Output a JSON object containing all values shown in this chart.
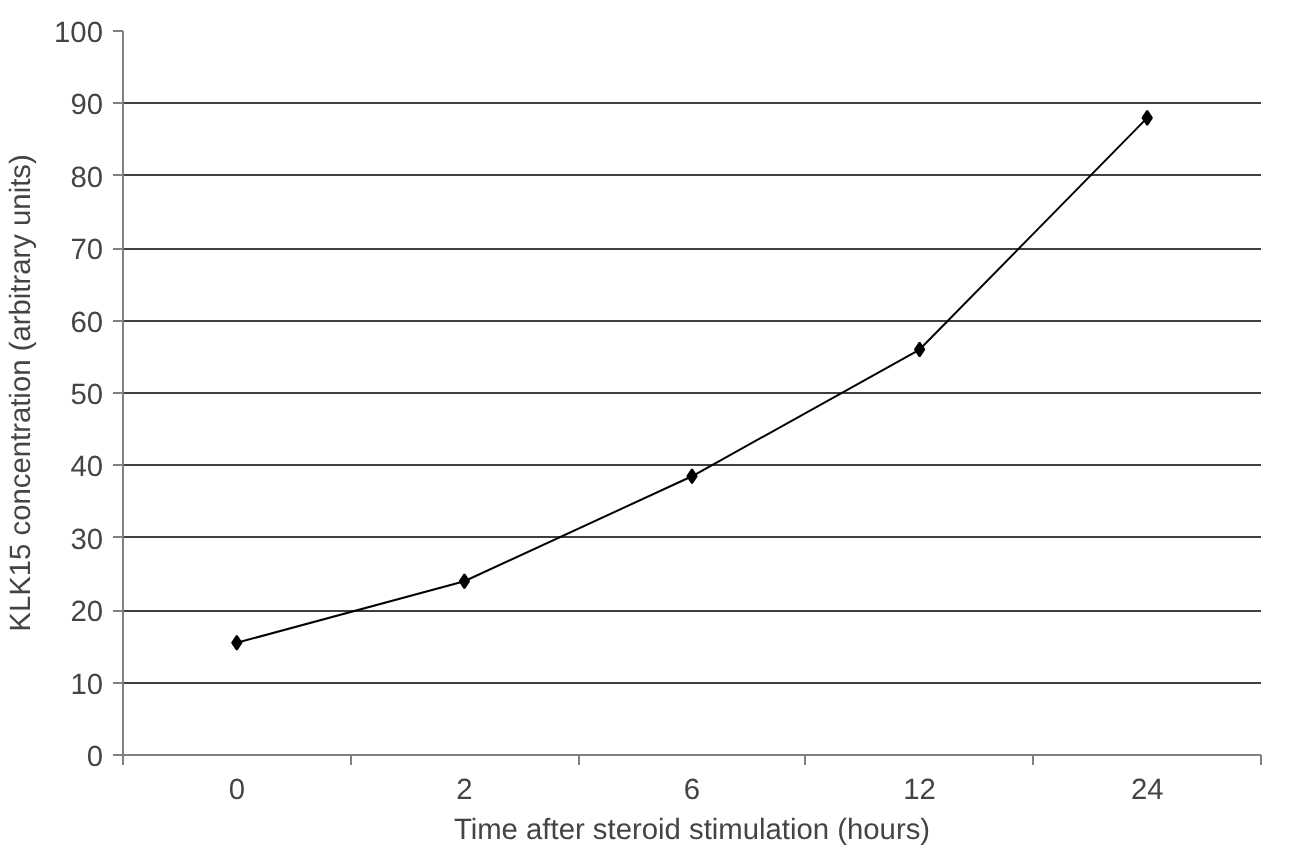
{
  "chart_data": {
    "type": "line",
    "xlabel": "Time after steroid stimulation (hours)",
    "ylabel": "KLK15 concentration (arbitrary units)",
    "categories": [
      "0",
      "2",
      "6",
      "12",
      "24"
    ],
    "series": [
      {
        "color": "#000000",
        "values": [
          15.5,
          24,
          38.5,
          56,
          88
        ]
      }
    ],
    "ylim": [
      0,
      100
    ],
    "yticks": [
      0,
      10,
      20,
      30,
      40,
      50,
      60,
      70,
      80,
      90,
      100
    ],
    "grid": "y",
    "marker": "diamond",
    "line_style": "solid"
  }
}
